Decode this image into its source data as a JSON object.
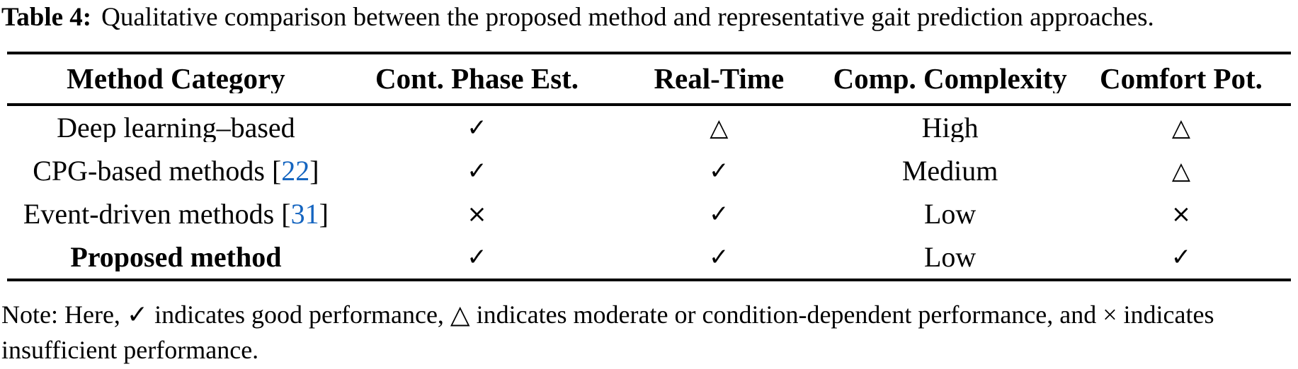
{
  "caption": {
    "label": "Table 4:",
    "text": "Qualitative comparison between the proposed method and representative gait prediction approaches."
  },
  "table": {
    "headers": [
      "Method Category",
      "Cont. Phase Est.",
      "Real-Time",
      "Comp. Complexity",
      "Comfort Pot."
    ],
    "rows": [
      {
        "method_pre": "Deep learning–based",
        "cite": "",
        "method_post": "",
        "cont_phase": "✓",
        "real_time": "△",
        "complexity": "High",
        "comfort": "△"
      },
      {
        "method_pre": "CPG-based methods [",
        "cite": "22",
        "method_post": "]",
        "cont_phase": "✓",
        "real_time": "✓",
        "complexity": "Medium",
        "comfort": "△"
      },
      {
        "method_pre": "Event-driven methods [",
        "cite": "31",
        "method_post": "]",
        "cont_phase": "×",
        "real_time": "✓",
        "complexity": "Low",
        "comfort": "×"
      },
      {
        "method_pre": "Proposed method",
        "cite": "",
        "method_post": "",
        "cont_phase": "✓",
        "real_time": "✓",
        "complexity": "Low",
        "comfort": "✓"
      }
    ]
  },
  "note": "Note: Here, ✓ indicates good performance, △ indicates moderate or condition-dependent performance, and × indicates insufficient performance.",
  "colors": {
    "citation_blue": "#1565C0",
    "text": "#000000",
    "rule": "#000000"
  }
}
